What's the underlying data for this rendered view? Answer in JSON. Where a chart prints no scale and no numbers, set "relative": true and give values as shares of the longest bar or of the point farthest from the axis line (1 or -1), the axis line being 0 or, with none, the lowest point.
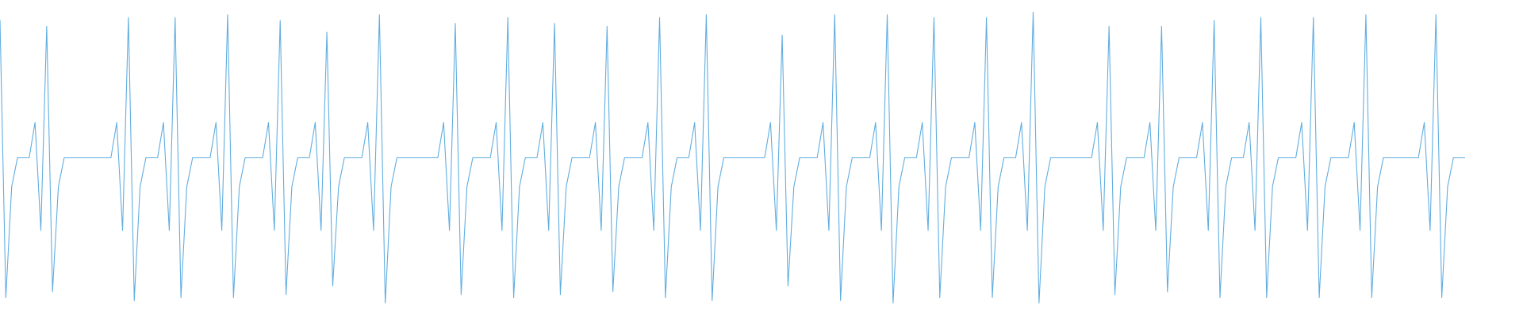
{
  "chart_data": {
    "type": "line",
    "relative": true,
    "marker": "none",
    "line_style": "solid",
    "categories": [
      null,
      null,
      null,
      null,
      null,
      null,
      null,
      null,
      null,
      null,
      null,
      null,
      null,
      null,
      null,
      null,
      null,
      null,
      null,
      null,
      null,
      null,
      null,
      null,
      null,
      null,
      null,
      null,
      null,
      null,
      null,
      null,
      null,
      null,
      null,
      null,
      null,
      null,
      null,
      null,
      null,
      null,
      null,
      null,
      null,
      null,
      null,
      null,
      null,
      null,
      null,
      null,
      null,
      null,
      null,
      null,
      null,
      null,
      null,
      null,
      null,
      null,
      null,
      null,
      null,
      null,
      null,
      null,
      null,
      null,
      null,
      null,
      null,
      null,
      null,
      null,
      null,
      null,
      null,
      null,
      null,
      null,
      null,
      null,
      null,
      null,
      null,
      null,
      null,
      null,
      null,
      null,
      null,
      null,
      null,
      null,
      null,
      null,
      null,
      null,
      null,
      null,
      null,
      null,
      null,
      null,
      null,
      null,
      null,
      null,
      null,
      null,
      null,
      null,
      null,
      null,
      null,
      null,
      null,
      null,
      null,
      null,
      null,
      null,
      null,
      null,
      null,
      null,
      null,
      null,
      null,
      null,
      null,
      null,
      null,
      null,
      null,
      null,
      null,
      null,
      null,
      null,
      null,
      null,
      null,
      null,
      null,
      null,
      null,
      null,
      null,
      null,
      null,
      null,
      null,
      null,
      null,
      null,
      null,
      null,
      null,
      null,
      null,
      null,
      null,
      null,
      null,
      null,
      null,
      null,
      null,
      null,
      null,
      null,
      null,
      null,
      null,
      null,
      null,
      null,
      null,
      null,
      null,
      null,
      null,
      null,
      null,
      null,
      null,
      null,
      null,
      null,
      null,
      null,
      null,
      null,
      null,
      null,
      null,
      null,
      null,
      null,
      null,
      null,
      null,
      null,
      null,
      null,
      null,
      null,
      null,
      null,
      null,
      null,
      null,
      null,
      null,
      null,
      null,
      null,
      null,
      null,
      null,
      null,
      null,
      null,
      null,
      null,
      null,
      null,
      null,
      null,
      null,
      null,
      null,
      null,
      null,
      null,
      null,
      null,
      null,
      null,
      null,
      null,
      null,
      null,
      null,
      null,
      null,
      null,
      null,
      null
    ],
    "series": [
      {
        "color": "#62aee0",
        "values": [
          0.97,
          0.02,
          0.4,
          0.5,
          0.5,
          0.5,
          0.62,
          0.25,
          0.95,
          0.04,
          0.4,
          0.5,
          0.5,
          0.5,
          0.5,
          0.5,
          0.5,
          0.5,
          0.5,
          0.5,
          0.62,
          0.25,
          0.98,
          0.01,
          0.4,
          0.5,
          0.5,
          0.5,
          0.62,
          0.25,
          0.98,
          0.02,
          0.4,
          0.5,
          0.5,
          0.5,
          0.5,
          0.62,
          0.25,
          0.99,
          0.02,
          0.4,
          0.5,
          0.5,
          0.5,
          0.5,
          0.62,
          0.25,
          0.97,
          0.03,
          0.4,
          0.5,
          0.5,
          0.5,
          0.62,
          0.25,
          0.93,
          0.06,
          0.4,
          0.5,
          0.5,
          0.5,
          0.5,
          0.62,
          0.25,
          0.99,
          0.0,
          0.4,
          0.5,
          0.5,
          0.5,
          0.5,
          0.5,
          0.5,
          0.5,
          0.5,
          0.62,
          0.25,
          0.96,
          0.03,
          0.4,
          0.5,
          0.5,
          0.5,
          0.5,
          0.62,
          0.25,
          0.98,
          0.02,
          0.4,
          0.5,
          0.5,
          0.5,
          0.62,
          0.25,
          0.96,
          0.03,
          0.4,
          0.5,
          0.5,
          0.5,
          0.5,
          0.62,
          0.25,
          0.95,
          0.04,
          0.4,
          0.5,
          0.5,
          0.5,
          0.5,
          0.62,
          0.25,
          0.98,
          0.02,
          0.4,
          0.5,
          0.5,
          0.5,
          0.62,
          0.25,
          0.99,
          0.01,
          0.4,
          0.5,
          0.5,
          0.5,
          0.5,
          0.5,
          0.5,
          0.5,
          0.5,
          0.62,
          0.25,
          0.92,
          0.06,
          0.4,
          0.5,
          0.5,
          0.5,
          0.5,
          0.62,
          0.25,
          0.99,
          0.01,
          0.4,
          0.5,
          0.5,
          0.5,
          0.5,
          0.62,
          0.25,
          0.99,
          0.0,
          0.4,
          0.5,
          0.5,
          0.5,
          0.62,
          0.25,
          0.98,
          0.02,
          0.4,
          0.5,
          0.5,
          0.5,
          0.5,
          0.62,
          0.25,
          0.98,
          0.02,
          0.4,
          0.5,
          0.5,
          0.5,
          0.62,
          0.25,
          1.0,
          0.0,
          0.4,
          0.5,
          0.5,
          0.5,
          0.5,
          0.5,
          0.5,
          0.5,
          0.5,
          0.62,
          0.25,
          0.95,
          0.03,
          0.4,
          0.5,
          0.5,
          0.5,
          0.5,
          0.62,
          0.25,
          0.95,
          0.04,
          0.4,
          0.5,
          0.5,
          0.5,
          0.5,
          0.62,
          0.25,
          0.97,
          0.02,
          0.4,
          0.5,
          0.5,
          0.5,
          0.62,
          0.25,
          0.98,
          0.02,
          0.4,
          0.5,
          0.5,
          0.5,
          0.5,
          0.62,
          0.25,
          0.98,
          0.02,
          0.4,
          0.5,
          0.5,
          0.5,
          0.5,
          0.62,
          0.25,
          0.99,
          0.02,
          0.4,
          0.5,
          0.5,
          0.5,
          0.5,
          0.5,
          0.5,
          0.5,
          0.62,
          0.25,
          0.99,
          0.02,
          0.4,
          0.5,
          0.5,
          0.5
        ]
      }
    ]
  }
}
